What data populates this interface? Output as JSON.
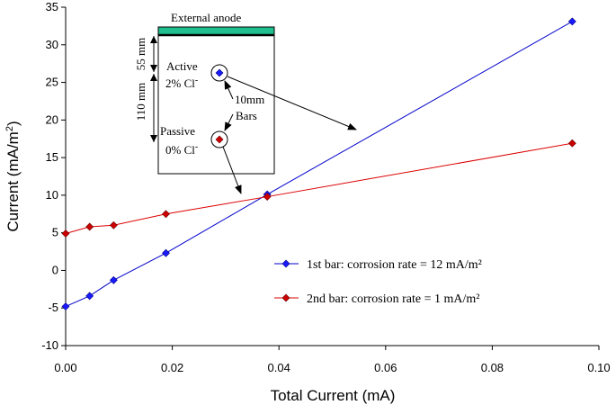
{
  "chart_data": {
    "type": "line",
    "title": "",
    "xlabel": "Total Current (mA)",
    "ylabel": "Current (mA/m²)",
    "xlim": [
      0,
      0.1
    ],
    "ylim": [
      -10,
      35
    ],
    "xticks": [
      "0.00",
      "0.02",
      "0.04",
      "0.06",
      "0.08",
      "0.10"
    ],
    "yticks": [
      "-10",
      "-5",
      "0",
      "5",
      "10",
      "15",
      "20",
      "25",
      "30",
      "35"
    ],
    "grid": false,
    "legend_position": "bottom-right",
    "series": [
      {
        "name": "1st bar: corrosion rate = 12 mA/m²",
        "color": "#0000cc",
        "marker_color": "#1a1aff",
        "x": [
          0.0,
          0.0045,
          0.009,
          0.0188,
          0.0378,
          0.095
        ],
        "y": [
          -4.8,
          -3.4,
          -1.3,
          2.3,
          10.1,
          33.1
        ]
      },
      {
        "name": "2nd bar: corrosion rate = 1 mA/m²",
        "color": "#dd0000",
        "marker_color": "#cc0000",
        "x": [
          0.0,
          0.0045,
          0.009,
          0.0188,
          0.0378,
          0.095
        ],
        "y": [
          4.9,
          5.8,
          6.0,
          7.5,
          9.8,
          16.9
        ]
      }
    ],
    "inset": {
      "anode_label": "External anode",
      "active_label": "Active",
      "active_conc": "2% Cl",
      "passive_label": "Passive",
      "passive_conc": "0% Cl",
      "superscript": "-",
      "dim_55": "55 mm",
      "dim_110": "110 mm",
      "bar_size_top": "10mm",
      "bar_size_bottom": "Bars",
      "anode_color": "#1fbf8f"
    }
  }
}
